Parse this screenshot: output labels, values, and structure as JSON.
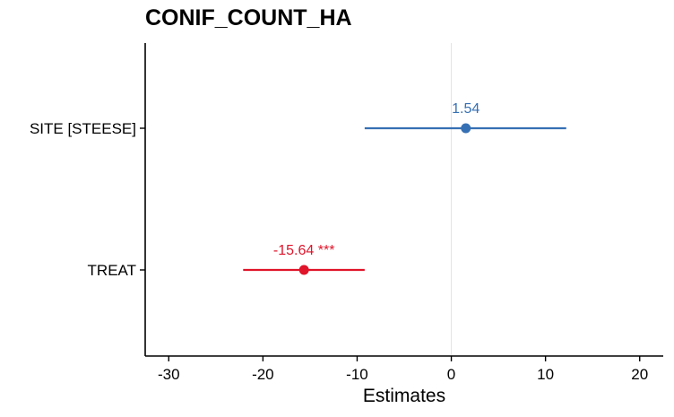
{
  "chart_data": {
    "type": "forest",
    "title": "CONIF_COUNT_HA",
    "xlabel": "Estimates",
    "ylabel": "",
    "xlim": [
      -32.5,
      22.5
    ],
    "xticks": [
      -30,
      -20,
      -10,
      0,
      10,
      20
    ],
    "reference_line": 0,
    "grid": false,
    "terms": [
      {
        "label": "SITE [STEESE]",
        "estimate": 1.54,
        "ci_low": -9.2,
        "ci_high": 12.2,
        "value_label": "1.54",
        "color": "#3670b4"
      },
      {
        "label": "TREAT",
        "estimate": -15.64,
        "ci_low": -22.1,
        "ci_high": -9.2,
        "value_label": "-15.64 ***",
        "color": "#e0142a"
      }
    ]
  }
}
